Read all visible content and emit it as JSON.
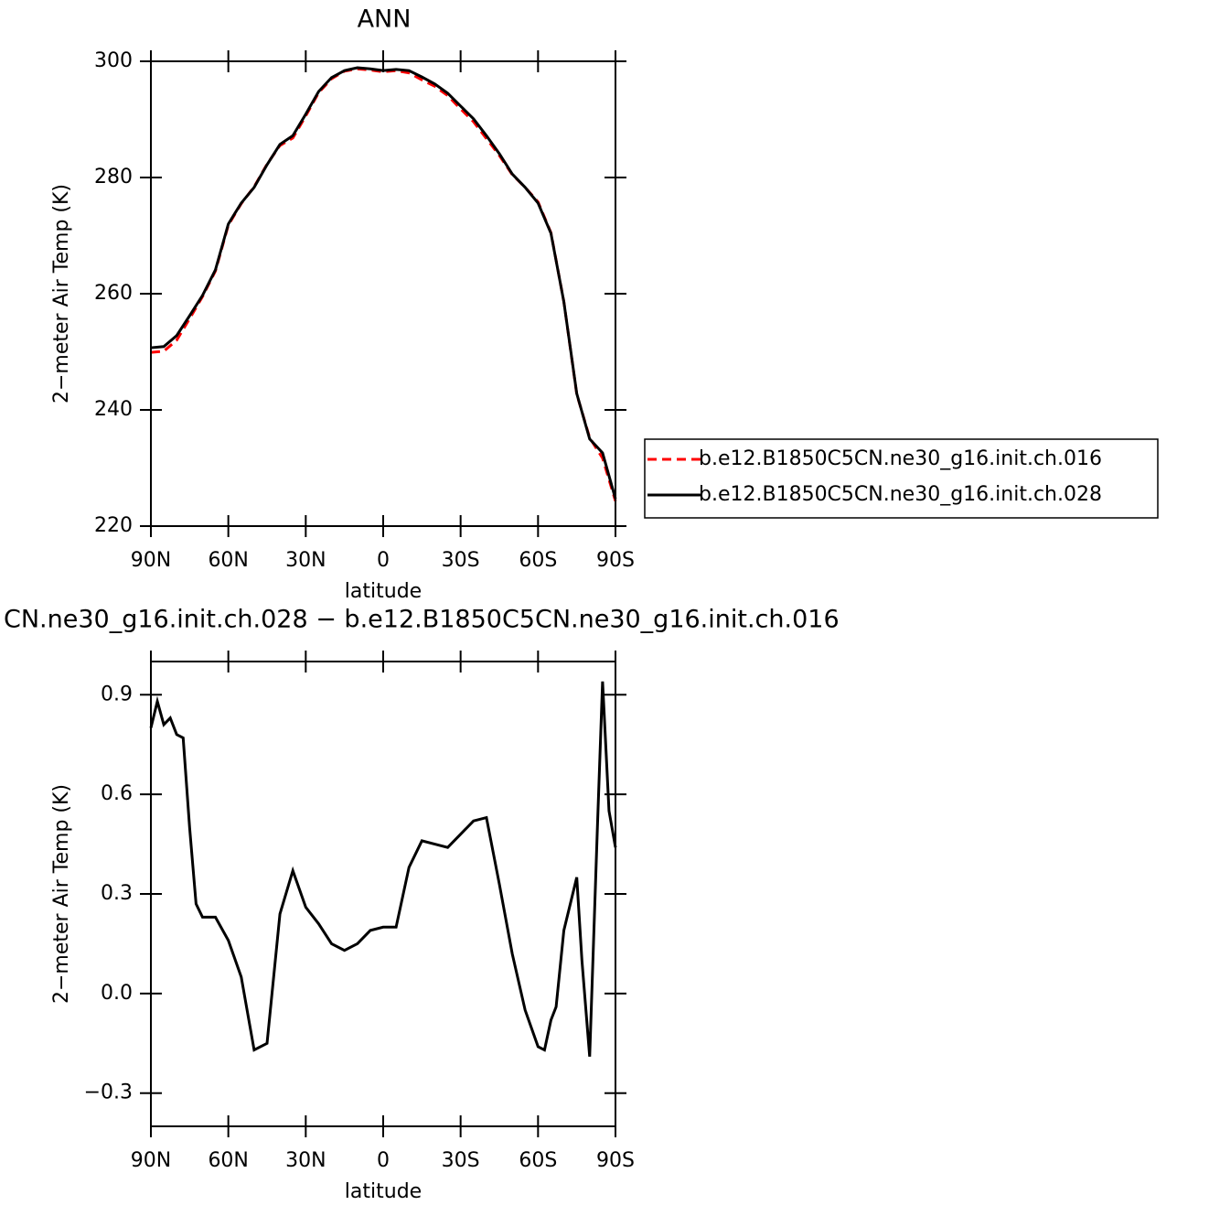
{
  "chart_data": [
    {
      "type": "line",
      "title": "ANN",
      "xlabel": "latitude",
      "ylabel": "2−meter Air Temp (K)",
      "x": [
        90,
        85,
        80,
        75,
        70,
        65,
        60,
        55,
        50,
        45,
        40,
        35,
        30,
        25,
        20,
        15,
        10,
        5,
        0,
        -5,
        -10,
        -15,
        -20,
        -25,
        -30,
        -35,
        -40,
        -45,
        -50,
        -55,
        -60,
        -65,
        -70,
        -75,
        -80,
        -85,
        -90
      ],
      "series": [
        {
          "name": "b.e12.B1850C5CN.ne30_g16.init.ch.016",
          "color": "#ff0000",
          "linestyle": "dashed",
          "values": [
            249.9,
            250.1,
            252.0,
            255.7,
            259.5,
            263.9,
            271.8,
            275.5,
            278.4,
            282.3,
            285.5,
            286.8,
            290.6,
            294.6,
            297.0,
            298.3,
            298.7,
            298.5,
            298.2,
            298.4,
            298.0,
            296.8,
            295.7,
            294.1,
            291.8,
            289.6,
            286.7,
            283.8,
            280.5,
            278.3,
            275.8,
            270.5,
            258.6,
            242.7,
            235.2,
            231.7,
            224.3
          ]
        },
        {
          "name": "b.e12.B1850C5CN.ne30_g16.init.ch.028",
          "color": "#000000",
          "linestyle": "solid",
          "values": [
            250.7,
            250.9,
            252.8,
            256.2,
            259.7,
            264.1,
            272.0,
            275.6,
            278.3,
            282.2,
            285.7,
            287.2,
            290.9,
            294.8,
            297.2,
            298.4,
            298.9,
            298.7,
            298.4,
            298.6,
            298.4,
            297.3,
            296.1,
            294.5,
            292.3,
            290.1,
            287.2,
            284.1,
            280.6,
            278.3,
            275.6,
            270.4,
            258.6,
            242.8,
            235.0,
            232.6,
            224.7
          ]
        }
      ],
      "xlim": [
        90,
        -90
      ],
      "ylim": [
        220,
        300
      ],
      "xticks": [
        {
          "value": 90,
          "label": "90N"
        },
        {
          "value": 60,
          "label": "60N"
        },
        {
          "value": 30,
          "label": "30N"
        },
        0,
        {
          "value": -30,
          "label": "30S"
        },
        {
          "value": -60,
          "label": "60S"
        },
        {
          "value": -90,
          "label": "90S"
        }
      ],
      "yticks": [
        220,
        240,
        260,
        280,
        300
      ],
      "legend": "outside-right"
    },
    {
      "type": "line",
      "title": "CN.ne30_g16.init.ch.028 − b.e12.B1850C5CN.ne30_g16.init.ch.016",
      "xlabel": "latitude",
      "ylabel": "2−meter Air Temp (K)",
      "x": [
        90,
        87.5,
        85,
        82.5,
        80,
        77.5,
        75,
        72.5,
        70,
        65,
        60,
        55,
        50,
        45,
        40,
        35,
        30,
        25,
        20,
        15,
        10,
        5,
        0,
        -5,
        -10,
        -15,
        -20,
        -25,
        -30,
        -35,
        -40,
        -45,
        -50,
        -55,
        -60,
        -62.5,
        -65,
        -67,
        -70,
        -75,
        -77,
        -80,
        -83,
        -85,
        -87.5,
        -90
      ],
      "series": [
        {
          "color": "#000000",
          "linestyle": "solid",
          "values": [
            0.8,
            0.88,
            0.81,
            0.83,
            0.78,
            0.77,
            0.5,
            0.27,
            0.23,
            0.23,
            0.16,
            0.05,
            -0.17,
            -0.15,
            0.24,
            0.37,
            0.26,
            0.21,
            0.15,
            0.13,
            0.15,
            0.19,
            0.2,
            0.2,
            0.38,
            0.46,
            0.45,
            0.44,
            0.48,
            0.52,
            0.53,
            0.33,
            0.12,
            -0.05,
            -0.16,
            -0.17,
            -0.08,
            -0.04,
            0.19,
            0.35,
            0.1,
            -0.19,
            0.5,
            0.94,
            0.55,
            0.44
          ]
        }
      ],
      "xlim": [
        90,
        -90
      ],
      "ylim": [
        -0.4,
        1.0
      ],
      "xticks": [
        {
          "value": 90,
          "label": "90N"
        },
        {
          "value": 60,
          "label": "60N"
        },
        {
          "value": 30,
          "label": "30N"
        },
        0,
        {
          "value": -30,
          "label": "30S"
        },
        {
          "value": -60,
          "label": "60S"
        },
        {
          "value": -90,
          "label": "90S"
        }
      ],
      "yticks": [
        {
          "value": -0.3,
          "label": "−0.3"
        },
        {
          "value": 0,
          "label": "0.0"
        },
        0.3,
        0.6,
        0.9
      ]
    }
  ]
}
